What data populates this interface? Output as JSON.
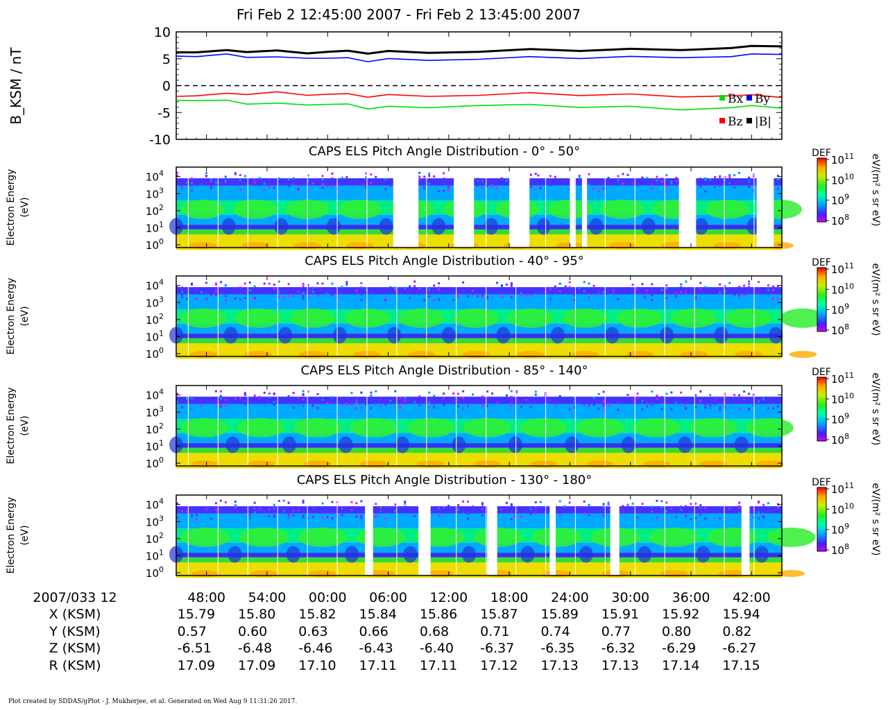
{
  "header": {
    "time_range": "Fri Feb 2 12:45:00 2007 - Fri Feb 2 13:45:00 2007"
  },
  "chart_data": [
    {
      "type": "line",
      "ylabel": "B_KSM / nT",
      "ylim": [
        -10,
        10
      ],
      "yticks": [
        "10",
        "5",
        "0",
        "-5",
        "-10"
      ],
      "xlim_minutes": [
        45,
        105
      ],
      "zero_line": "dashed",
      "legend_placement": "right",
      "legend": [
        "Bx",
        "By",
        "Bz",
        "|B|"
      ],
      "series": [
        {
          "name": "Bx",
          "color": "#00e000",
          "x": [
            45,
            47,
            50,
            52,
            55,
            58,
            60,
            62,
            64,
            66,
            70,
            75,
            80,
            85,
            90,
            95,
            100,
            102,
            105
          ],
          "values": [
            -2.7,
            -2.8,
            -3.0,
            -3.3,
            -3.4,
            -3.3,
            -3.5,
            -3.7,
            -4.2,
            -4.0,
            -3.8,
            -3.7,
            -3.8,
            -3.9,
            -4.0,
            -4.2,
            -4.1,
            -4.0,
            -4.2
          ]
        },
        {
          "name": "By",
          "color": "#0000ff",
          "x": [
            45,
            47,
            50,
            52,
            55,
            58,
            60,
            62,
            64,
            66,
            70,
            75,
            80,
            85,
            90,
            95,
            100,
            102,
            105
          ],
          "values": [
            5.5,
            5.4,
            5.6,
            5.4,
            5.2,
            5.4,
            5.1,
            4.9,
            4.6,
            4.9,
            5.0,
            4.9,
            5.1,
            5.2,
            5.3,
            5.5,
            5.4,
            5.6,
            5.8
          ]
        },
        {
          "name": "Bz",
          "color": "#ff0000",
          "x": [
            45,
            47,
            50,
            52,
            55,
            58,
            60,
            62,
            64,
            66,
            70,
            75,
            80,
            85,
            90,
            95,
            100,
            102,
            105
          ],
          "values": [
            -2.0,
            -1.9,
            -1.7,
            -1.5,
            -1.3,
            -1.5,
            -1.6,
            -1.8,
            -2.0,
            -1.8,
            -1.7,
            -1.8,
            -1.6,
            -1.7,
            -1.7,
            -1.8,
            -1.9,
            -2.0,
            -2.2
          ]
        },
        {
          "name": "|B|",
          "color": "#000000",
          "x": [
            45,
            47,
            50,
            52,
            55,
            58,
            60,
            62,
            64,
            66,
            70,
            75,
            80,
            85,
            90,
            95,
            100,
            102,
            105
          ],
          "values": [
            6.2,
            6.2,
            6.3,
            6.4,
            6.4,
            6.3,
            6.3,
            6.2,
            6.1,
            6.3,
            6.4,
            6.3,
            6.5,
            6.6,
            6.7,
            6.9,
            7.0,
            7.1,
            7.3
          ]
        }
      ]
    },
    {
      "type": "heatmap",
      "title": "CAPS ELS Pitch Angle Distribution - 0° - 50°",
      "ylabel": "Electron Energy (eV)",
      "colorbar_label": "eV/(m² s sr eV)",
      "colorbar_title": "DEF",
      "colorbar_range": [
        100000000.0,
        100000000000.0
      ],
      "data_gaps_minutes": [
        [
          66.5,
          69.0
        ],
        [
          72.5,
          74.5
        ],
        [
          78.0,
          80.0
        ],
        [
          84.0,
          84.5
        ],
        [
          85.2,
          85.7
        ],
        [
          94.8,
          96.5
        ],
        [
          102.5,
          104.2
        ]
      ]
    },
    {
      "type": "heatmap",
      "title": "CAPS ELS Pitch Angle Distribution - 40° - 95°",
      "ylabel": "Electron Energy (eV)",
      "colorbar_label": "eV/(m² s sr eV)",
      "colorbar_title": "DEF",
      "colorbar_range": [
        100000000.0,
        100000000000.0
      ],
      "data_gaps_minutes": []
    },
    {
      "type": "heatmap",
      "title": "CAPS ELS Pitch Angle Distribution - 85° - 140°",
      "ylabel": "Electron Energy (eV)",
      "colorbar_label": "eV/(m² s sr eV)",
      "colorbar_title": "DEF",
      "colorbar_range": [
        100000000.0,
        100000000000.0
      ],
      "data_gaps_minutes": []
    },
    {
      "type": "heatmap",
      "title": "CAPS ELS Pitch Angle Distribution - 130° - 180°",
      "ylabel": "Electron Energy (eV)",
      "colorbar_label": "eV/(m² s sr eV)",
      "colorbar_title": "DEF",
      "colorbar_range": [
        100000000.0,
        100000000000.0
      ],
      "data_gaps_minutes": [
        [
          63.7,
          64.5
        ],
        [
          69.0,
          70.2
        ],
        [
          75.8,
          76.8
        ],
        [
          82.0,
          82.6
        ],
        [
          88.0,
          88.9
        ],
        [
          101.0,
          101.8
        ]
      ]
    }
  ],
  "ephemeris": {
    "row_labels": [
      "2007/033 12",
      "X (KSM)",
      "Y (KSM)",
      "Z (KSM)",
      "R (KSM)"
    ],
    "tick_minutes": [
      48,
      54,
      60,
      66,
      72,
      78,
      84,
      90,
      96,
      102
    ],
    "time_labels": [
      "48:00",
      "54:00",
      "00:00",
      "06:00",
      "12:00",
      "18:00",
      "24:00",
      "30:00",
      "36:00",
      "42:00"
    ],
    "X": [
      "15.79",
      "15.80",
      "15.82",
      "15.84",
      "15.86",
      "15.87",
      "15.89",
      "15.91",
      "15.92",
      "15.94"
    ],
    "Y": [
      "0.57",
      "0.60",
      "0.63",
      "0.66",
      "0.68",
      "0.71",
      "0.74",
      "0.77",
      "0.80",
      "0.82"
    ],
    "Z": [
      "-6.51",
      "-6.48",
      "-6.46",
      "-6.43",
      "-6.40",
      "-6.37",
      "-6.35",
      "-6.32",
      "-6.29",
      "-6.27"
    ],
    "R": [
      "17.09",
      "17.09",
      "17.10",
      "17.11",
      "17.11",
      "17.12",
      "17.13",
      "17.13",
      "17.14",
      "17.15"
    ]
  },
  "footer": {
    "credit": "Plot created by SDDAS/gPlot - J. Mukherjee, et al.  Generated on Wed Aug 9 11:31:26 2017."
  }
}
